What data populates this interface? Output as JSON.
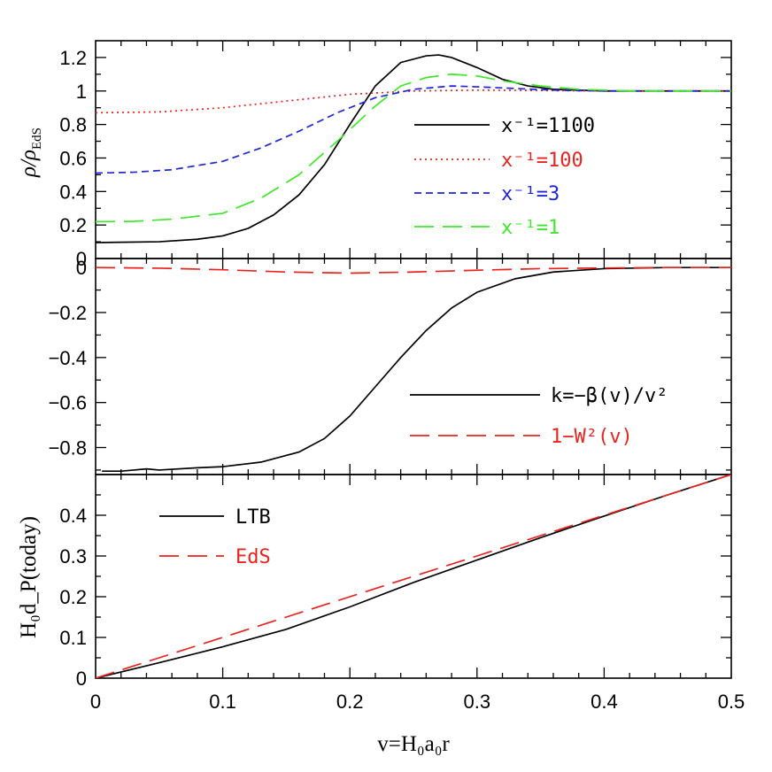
{
  "colors": {
    "black": "#000000",
    "red": "#e8241f",
    "blue": "#1f26d6",
    "green": "#3ee82a"
  },
  "chart_data": [
    {
      "id": "top",
      "type": "line",
      "ylabel": "ρ/ρ_EdS",
      "ylabel_main": "ρ/ρ",
      "ylabel_sub": "EdS",
      "xlim": [
        0,
        0.5
      ],
      "ylim": [
        0,
        1.3
      ],
      "xticks": [
        0,
        0.1,
        0.2,
        0.3,
        0.4,
        0.5
      ],
      "yticks": [
        0,
        0.2,
        0.4,
        0.6,
        0.8,
        1,
        1.2
      ],
      "yticklabels": [
        "0",
        "0.2",
        "0.4",
        "0.6",
        "0.8",
        "1",
        "1.2"
      ],
      "legend_position": "center-right",
      "series": [
        {
          "name": "x⁻¹=1100",
          "color": "black",
          "dash": "solid",
          "x": [
            0,
            0.02,
            0.05,
            0.08,
            0.1,
            0.12,
            0.14,
            0.16,
            0.18,
            0.2,
            0.22,
            0.24,
            0.26,
            0.27,
            0.28,
            0.3,
            0.32,
            0.34,
            0.36,
            0.38,
            0.4,
            0.45,
            0.5
          ],
          "y": [
            0.095,
            0.097,
            0.1,
            0.115,
            0.135,
            0.18,
            0.26,
            0.38,
            0.56,
            0.8,
            1.03,
            1.17,
            1.21,
            1.215,
            1.2,
            1.14,
            1.07,
            1.03,
            1.01,
            1.005,
            1.0,
            1.0,
            1.0
          ]
        },
        {
          "name": "x⁻¹=100",
          "color": "red",
          "dash": "dotted",
          "x": [
            0,
            0.05,
            0.1,
            0.15,
            0.2,
            0.25,
            0.3,
            0.35,
            0.4,
            0.45,
            0.5
          ],
          "y": [
            0.87,
            0.875,
            0.9,
            0.94,
            0.98,
            1.0,
            1.005,
            1.003,
            1.0,
            1.0,
            1.0
          ]
        },
        {
          "name": "x⁻¹=3",
          "color": "blue",
          "dash": "short-dash",
          "x": [
            0,
            0.03,
            0.06,
            0.1,
            0.13,
            0.16,
            0.19,
            0.22,
            0.25,
            0.28,
            0.3,
            0.33,
            0.36,
            0.4,
            0.45,
            0.5
          ],
          "y": [
            0.51,
            0.515,
            0.53,
            0.58,
            0.66,
            0.76,
            0.87,
            0.96,
            1.01,
            1.03,
            1.025,
            1.015,
            1.005,
            1.0,
            1.0,
            1.0
          ]
        },
        {
          "name": "x⁻¹=1",
          "color": "green",
          "dash": "long-dash",
          "x": [
            0,
            0.03,
            0.06,
            0.1,
            0.13,
            0.16,
            0.19,
            0.22,
            0.24,
            0.26,
            0.28,
            0.3,
            0.32,
            0.35,
            0.38,
            0.42,
            0.5
          ],
          "y": [
            0.22,
            0.222,
            0.235,
            0.27,
            0.36,
            0.5,
            0.7,
            0.91,
            1.03,
            1.08,
            1.1,
            1.09,
            1.06,
            1.03,
            1.01,
            1.0,
            1.0
          ]
        }
      ]
    },
    {
      "id": "middle",
      "type": "line",
      "ylabel": "",
      "xlim": [
        0,
        0.5
      ],
      "ylim": [
        -0.92,
        0.04
      ],
      "xticks": [
        0,
        0.1,
        0.2,
        0.3,
        0.4,
        0.5
      ],
      "yticks": [
        -0.8,
        -0.6,
        -0.4,
        -0.2,
        0
      ],
      "yticklabels": [
        "−0.8",
        "−0.6",
        "−0.4",
        "−0.2",
        "0"
      ],
      "legend_position": "bottom-right",
      "series": [
        {
          "name": "k=−β(v)/v²",
          "color": "black",
          "dash": "solid",
          "x": [
            0.005,
            0.02,
            0.03,
            0.04,
            0.05,
            0.08,
            0.1,
            0.13,
            0.16,
            0.18,
            0.2,
            0.22,
            0.24,
            0.26,
            0.28,
            0.3,
            0.33,
            0.36,
            0.4,
            0.45,
            0.5
          ],
          "y": [
            -0.905,
            -0.905,
            -0.9,
            -0.895,
            -0.9,
            -0.89,
            -0.885,
            -0.865,
            -0.82,
            -0.76,
            -0.66,
            -0.53,
            -0.4,
            -0.28,
            -0.18,
            -0.11,
            -0.05,
            -0.02,
            -0.005,
            0,
            0
          ]
        },
        {
          "name": "1−W²(v)",
          "color": "red",
          "dash": "long-dash",
          "x": [
            0,
            0.05,
            0.1,
            0.15,
            0.2,
            0.25,
            0.3,
            0.35,
            0.4,
            0.45,
            0.5
          ],
          "y": [
            0,
            -0.003,
            -0.01,
            -0.02,
            -0.025,
            -0.02,
            -0.012,
            -0.005,
            -0.002,
            0,
            0
          ]
        }
      ]
    },
    {
      "id": "bottom",
      "type": "line",
      "xlabel": "v=H₀a₀r",
      "ylabel": "H₀d_P(today)",
      "xlim": [
        0,
        0.5
      ],
      "ylim": [
        0,
        0.5
      ],
      "xticks": [
        0,
        0.1,
        0.2,
        0.3,
        0.4,
        0.5
      ],
      "xticklabels": [
        "0",
        "0.1",
        "0.2",
        "0.3",
        "0.4",
        "0.5"
      ],
      "yticks": [
        0,
        0.1,
        0.2,
        0.3,
        0.4
      ],
      "yticklabels": [
        "0",
        "0.1",
        "0.2",
        "0.3",
        "0.4"
      ],
      "legend_position": "top-left",
      "series": [
        {
          "name": "LTB",
          "color": "black",
          "dash": "solid",
          "x": [
            0,
            0.05,
            0.1,
            0.15,
            0.2,
            0.25,
            0.3,
            0.35,
            0.4,
            0.45,
            0.5
          ],
          "y": [
            0,
            0.038,
            0.077,
            0.12,
            0.175,
            0.235,
            0.29,
            0.345,
            0.398,
            0.45,
            0.5
          ]
        },
        {
          "name": "EdS",
          "color": "red",
          "dash": "long-dash",
          "x": [
            0,
            0.05,
            0.1,
            0.15,
            0.2,
            0.25,
            0.3,
            0.35,
            0.4,
            0.45,
            0.5
          ],
          "y": [
            0,
            0.05,
            0.1,
            0.15,
            0.2,
            0.25,
            0.3,
            0.35,
            0.4,
            0.45,
            0.5
          ]
        }
      ]
    }
  ]
}
